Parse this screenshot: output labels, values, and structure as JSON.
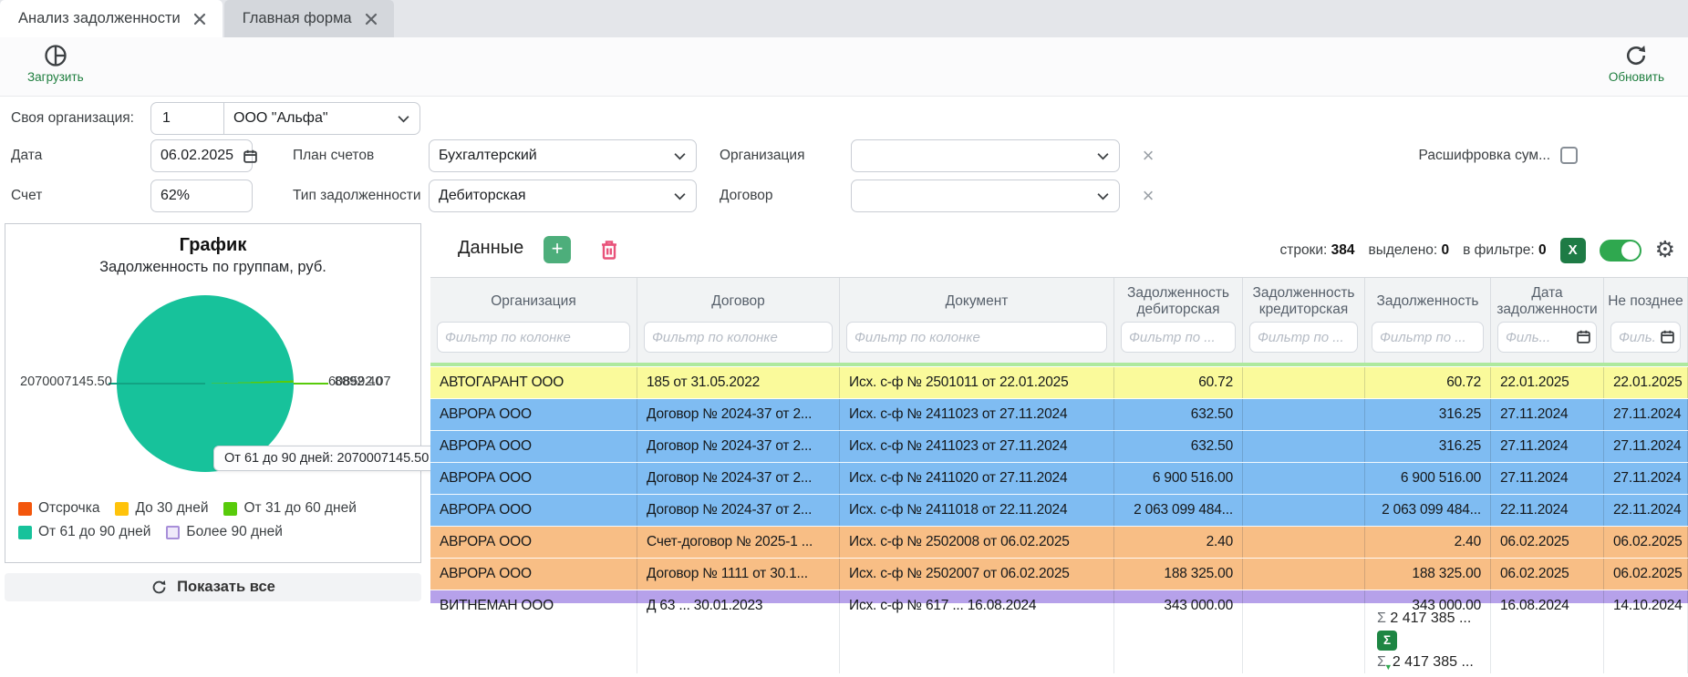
{
  "tabs": {
    "items": [
      {
        "label": "Анализ задолженности",
        "active": true
      },
      {
        "label": "Главная форма",
        "active": false
      }
    ]
  },
  "toolbar": {
    "load_label": "Загрузить",
    "refresh_label": "Обновить",
    "accent_green": "#1E7E3E"
  },
  "filters": {
    "own_org": {
      "label": "Своя организация:",
      "code": "1",
      "name": "ООО \"Альфа\""
    },
    "date": {
      "label": "Дата",
      "value": "06.02.2025"
    },
    "chart_of_accounts": {
      "label": "План счетов",
      "value": "Бухгалтерский"
    },
    "organization": {
      "label": "Организация",
      "value": ""
    },
    "sum_breakdown": {
      "label": "Расшифровка сум...",
      "checked": false
    },
    "account": {
      "label": "Счет",
      "value": "62%"
    },
    "debt_type": {
      "label": "Тип задолженности",
      "value": "Дебиторская"
    },
    "contract": {
      "label": "Договор",
      "value": ""
    }
  },
  "chart_panel": {
    "show_all_label": "Показать все"
  },
  "chart_data": {
    "type": "pie",
    "title": "График",
    "subtitle": "Задолженность по группам, руб.",
    "slices": [
      {
        "label": "Отсрочка",
        "color": "#F3560C",
        "value": null
      },
      {
        "label": "До 30 дней",
        "color": "#FFC30B",
        "value": null
      },
      {
        "label": "От 31 до 60 дней",
        "color": "#58CB0B",
        "value": null
      },
      {
        "label": "От 61 до 90 дней",
        "color": "#17C29B",
        "value": 2070007145.5
      },
      {
        "label": "Более 90 дней",
        "color": "#EFE9FA",
        "border_color": "#A88FD9",
        "value": null
      }
    ],
    "callout_left": "2070007145.50",
    "callouts_right": [
      "608592.07",
      "8892.40"
    ],
    "tooltip": "От 61 до 90 дней: 2070007145.50",
    "legend_position": "bottom"
  },
  "data_panel": {
    "title": "Данные",
    "stats": {
      "rows_label": "строки:",
      "rows_value": "384",
      "selected_label": "выделено:",
      "selected_value": "0",
      "filtered_label": "в фильтре:",
      "filtered_value": "0"
    },
    "table": {
      "columns": [
        {
          "label": "Организация",
          "filter_placeholder": "Фильтр по колонке"
        },
        {
          "label": "Договор",
          "filter_placeholder": "Фильтр по колонке"
        },
        {
          "label": "Документ",
          "filter_placeholder": "Фильтр по колонке"
        },
        {
          "label": "Задолженность дебиторская",
          "filter_placeholder": "Фильтр по ..."
        },
        {
          "label": "Задолженность кредиторская",
          "filter_placeholder": "Фильтр по ..."
        },
        {
          "label": "Задолженность",
          "filter_placeholder": "Фильтр по ..."
        },
        {
          "label": "Дата задолженности",
          "filter_placeholder": "Филь..."
        },
        {
          "label": "Не позднее",
          "filter_placeholder": "Филь..."
        }
      ],
      "row_colors": {
        "yellow": "#FAFA9B",
        "blue": "#7FBCF2",
        "orange": "#F8BE85",
        "purple": "#B6A1EA",
        "green": "#AEE99E"
      },
      "rows": [
        {
          "color": "yellow",
          "cells": [
            "АВТОГАРАНТ ООО",
            "185 от 31.05.2022",
            "Исх. с-ф № 2501011 от 22.01.2025",
            "60.72",
            "",
            "60.72",
            "22.01.2025",
            "22.01.2025"
          ]
        },
        {
          "color": "blue",
          "cells": [
            "АВРОРА ООО",
            "Договор № 2024-37 от 2...",
            "Исх. с-ф № 2411023 от 27.11.2024",
            "632.50",
            "",
            "316.25",
            "27.11.2024",
            "27.11.2024"
          ]
        },
        {
          "color": "blue",
          "cells": [
            "АВРОРА ООО",
            "Договор № 2024-37 от 2...",
            "Исх. с-ф № 2411023 от 27.11.2024",
            "632.50",
            "",
            "316.25",
            "27.11.2024",
            "27.11.2024"
          ]
        },
        {
          "color": "blue",
          "cells": [
            "АВРОРА ООО",
            "Договор № 2024-37 от 2...",
            "Исх. с-ф № 2411020 от 27.11.2024",
            "6 900 516.00",
            "",
            "6 900 516.00",
            "27.11.2024",
            "27.11.2024"
          ]
        },
        {
          "color": "blue",
          "cells": [
            "АВРОРА ООО",
            "Договор № 2024-37 от 2...",
            "Исх. с-ф № 2411018 от 22.11.2024",
            "2 063 099 484...",
            "",
            "2 063 099 484...",
            "22.11.2024",
            "22.11.2024"
          ]
        },
        {
          "color": "orange",
          "cells": [
            "АВРОРА ООО",
            "Счет-договор № 2025-1 ...",
            "Исх. с-ф № 2502008 от 06.02.2025",
            "2.40",
            "",
            "2.40",
            "06.02.2025",
            "06.02.2025"
          ]
        },
        {
          "color": "orange",
          "cells": [
            "АВРОРА ООО",
            "Договор № 1111 от 30.1...",
            "Исх. с-ф № 2502007 от 06.02.2025",
            "188 325.00",
            "",
            "188 325.00",
            "06.02.2025",
            "06.02.2025"
          ]
        },
        {
          "color": "purple",
          "cells": [
            "ВИТНЕМАН ООО",
            "Д 63 ... 30.01.2023",
            "Исх. с-ф № 617 ... 16.08.2024",
            "343 000.00",
            "",
            "343 000.00",
            "16.08.2024",
            "14.10.2024"
          ]
        }
      ]
    },
    "footer": {
      "sigma": "Σ",
      "total": "2 417 385 ...",
      "filter_total": "2 417 385 ..."
    }
  }
}
